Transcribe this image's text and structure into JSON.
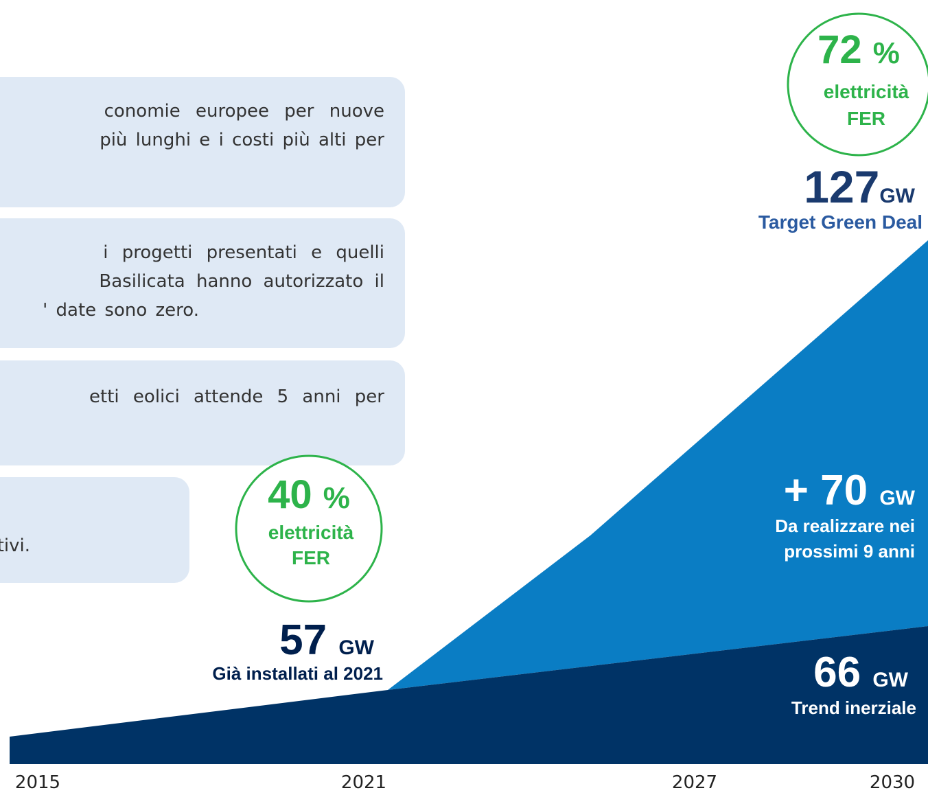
{
  "text_boxes": [
    {
      "lines": [
        "conomie europee per nuove",
        "più lunghi e i costi più alti per"
      ]
    },
    {
      "lines": [
        "i progetti presentati e quelli",
        "Basilicata hanno autorizzato il",
        "' date sono zero."
      ]
    },
    {
      "lines": [
        "etti eolici attende 5 anni per"
      ]
    },
    {
      "lines": [
        "tivi."
      ]
    }
  ],
  "circles": [
    {
      "value": "72",
      "unit": "%",
      "line1": "elettricità",
      "line2": "FER"
    },
    {
      "value": "40",
      "unit": "%",
      "line1": "elettricità",
      "line2": "FER"
    }
  ],
  "callouts": [
    {
      "value": "127",
      "unit": "GW",
      "caption": [
        "Target Green Deal"
      ]
    },
    {
      "value": "+ 70",
      "unit": "GW",
      "caption": [
        "Da realizzare nei",
        "prossimi 9 anni"
      ]
    },
    {
      "value": "57",
      "unit": "GW",
      "caption": [
        "Già installati al 2021"
      ]
    },
    {
      "value": "66",
      "unit": "GW",
      "caption": [
        "Trend inerziale"
      ]
    }
  ],
  "years": [
    "2015",
    "2021",
    "2027",
    "2030"
  ]
}
